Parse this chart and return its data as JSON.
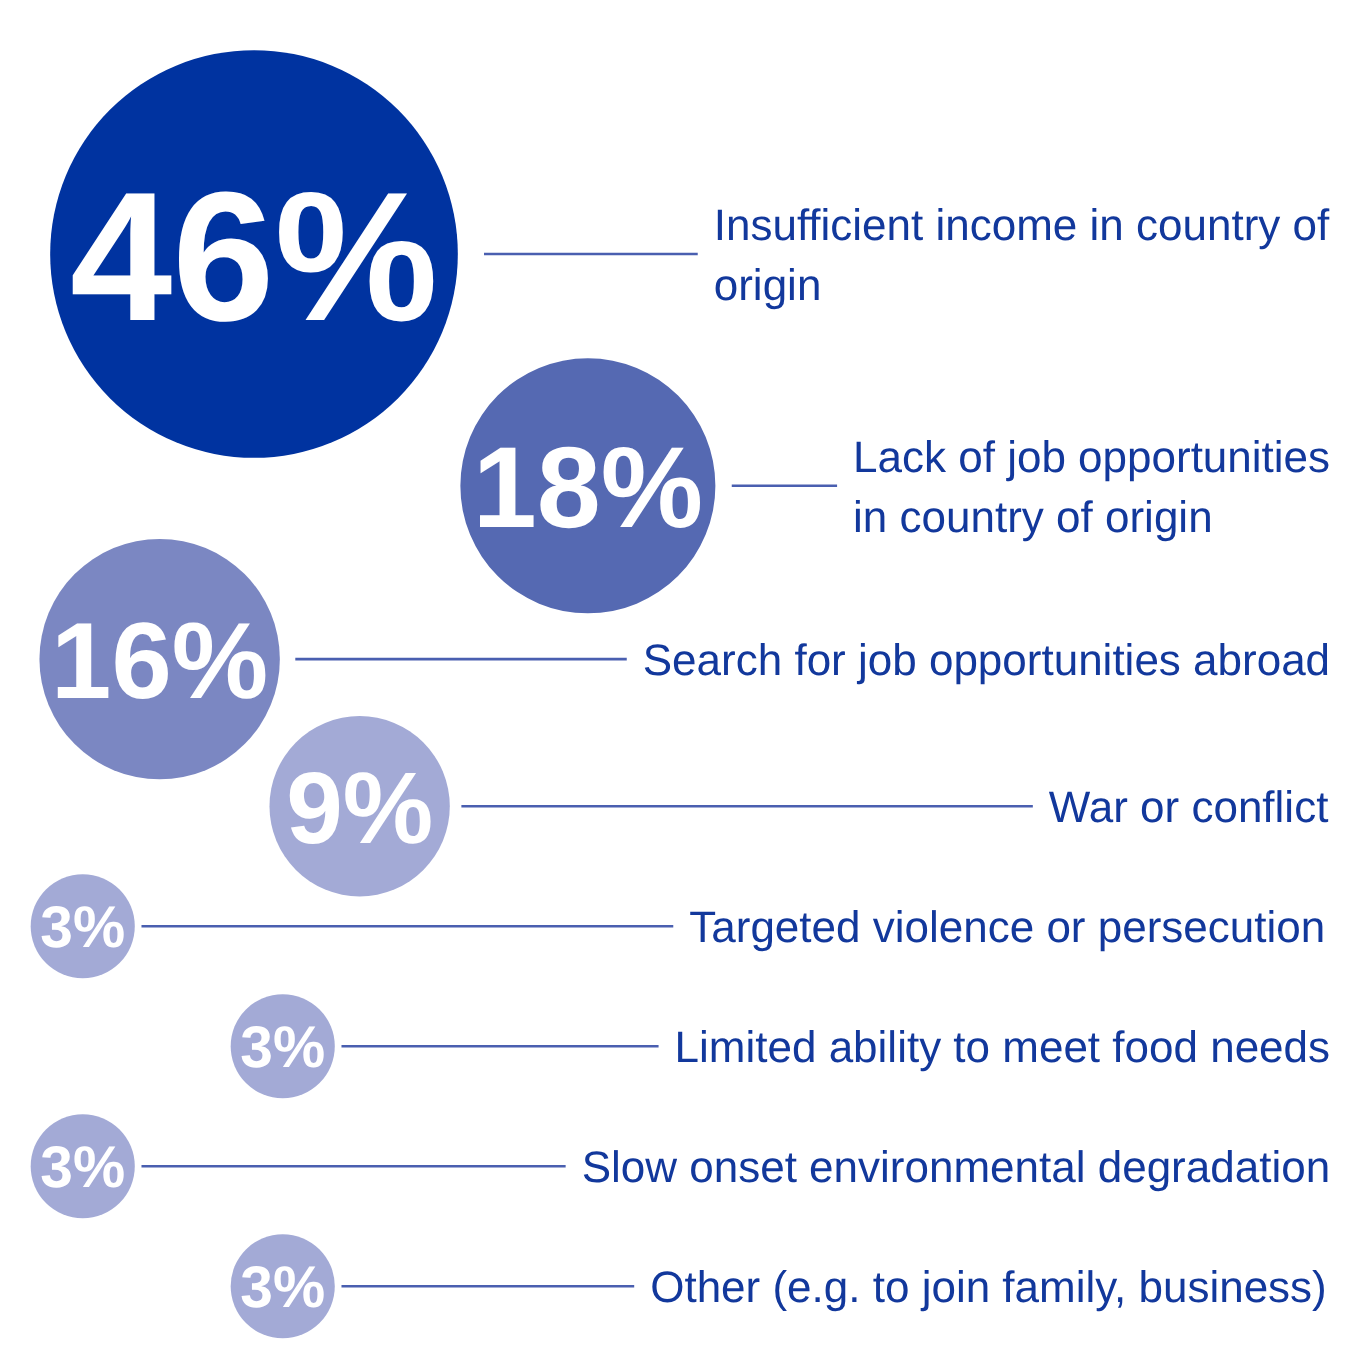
{
  "chart_data": {
    "type": "other",
    "categories": [
      "Insufficient income in country of origin",
      "Lack of job opportunities in country of origin",
      "Search for job opportunities abroad",
      "War or conflict",
      "Targeted violence or persecution",
      "Limited ability to meet food needs",
      "Slow onset environmental degradation",
      "Other (e.g. to join family, business)"
    ],
    "values": [
      46,
      18,
      16,
      9,
      3,
      3,
      3,
      3
    ],
    "value_labels": [
      "46%",
      "18%",
      "16%",
      "9%",
      "3%",
      "3%",
      "3%",
      "3%"
    ],
    "colors": [
      "#0033a0",
      "#5569b2",
      "#7b87c2",
      "#a3aad6",
      "#a3aad6",
      "#a3aad6",
      "#a3aad6",
      "#a3aad6"
    ]
  }
}
